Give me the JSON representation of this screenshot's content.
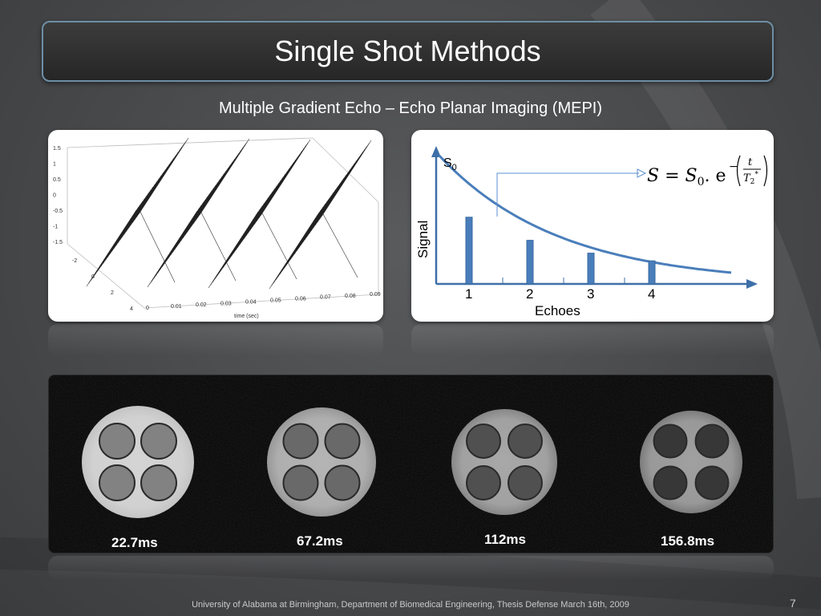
{
  "slide": {
    "title": "Single Shot Methods",
    "subtitle": "Multiple Gradient Echo – Echo Planar Imaging (MEPI)",
    "footer": "University of Alabama at Birmingham, Department of Biomedical Engineering, Thesis Defense March 16th, 2009",
    "page_number": "7"
  },
  "plot3d": {
    "z_ticks": [
      "1.5",
      "1",
      "0.5",
      "0",
      "-0.5",
      "-1",
      "-1.5"
    ],
    "y_ticks": [
      "-2",
      "0",
      "2",
      "4"
    ],
    "x_ticks": [
      "0",
      "0.01",
      "0.02",
      "0.03",
      "0.04",
      "0.05",
      "0.06",
      "0.07",
      "0.08",
      "0.09"
    ],
    "xlabel": "time (sec)"
  },
  "decay": {
    "s0_label": "S",
    "s0_sub": "0",
    "ylabel": "Signal",
    "xlabel": "Echoes",
    "echo_ticks": [
      "1",
      "2",
      "3",
      "4"
    ],
    "formula": {
      "lhs": "S = S",
      "sub0": "0",
      "dot_e": ". e",
      "exp_minus": "−",
      "t": "t",
      "T": "T",
      "T_sub": "2",
      "T_sup": "*"
    },
    "chart_data": {
      "type": "bar",
      "categories": [
        "1",
        "2",
        "3",
        "4"
      ],
      "values": [
        0.52,
        0.34,
        0.24,
        0.18
      ],
      "xlabel": "Echoes",
      "ylabel": "Signal",
      "ylim": [
        0,
        1
      ]
    }
  },
  "mri": {
    "labels": [
      "22.7ms",
      "67.2ms",
      "112ms",
      "156.8ms"
    ],
    "brightness": [
      0.78,
      0.58,
      0.5,
      0.45
    ]
  }
}
